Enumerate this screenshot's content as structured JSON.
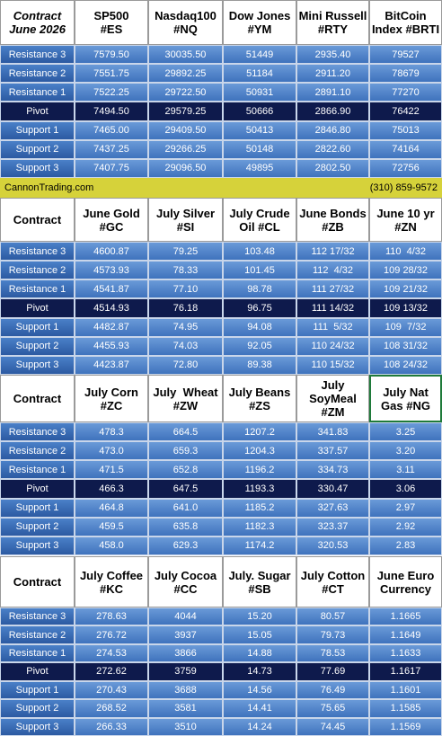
{
  "sections": [
    {
      "header": [
        [
          "Contract",
          "June 2026"
        ],
        [
          "SP500",
          "#ES"
        ],
        [
          "Nasdaq100",
          "#NQ"
        ],
        [
          "Dow Jones",
          "#YM"
        ],
        [
          "Mini Russell",
          "#RTY"
        ],
        [
          "BitCoin",
          "Index #BRTI"
        ]
      ],
      "rows": [
        [
          "Resistance 3",
          "7579.50",
          "30035.50",
          "51449",
          "2935.40",
          "79527"
        ],
        [
          "Resistance 2",
          "7551.75",
          "29892.25",
          "51184",
          "2911.20",
          "78679"
        ],
        [
          "Resistance 1",
          "7522.25",
          "29722.50",
          "50931",
          "2891.10",
          "77270"
        ],
        [
          "Pivot",
          "7494.50",
          "29579.25",
          "50666",
          "2866.90",
          "76422"
        ],
        [
          "Support 1",
          "7465.00",
          "29409.50",
          "50413",
          "2846.80",
          "75013"
        ],
        [
          "Support 2",
          "7437.25",
          "29266.25",
          "50148",
          "2822.60",
          "74164"
        ],
        [
          "Support 3",
          "7407.75",
          "29096.50",
          "49895",
          "2802.50",
          "72756"
        ]
      ]
    },
    {
      "header": [
        [
          "Contract"
        ],
        [
          "June Gold",
          "#GC"
        ],
        [
          "July Silver",
          "#SI"
        ],
        [
          "July Crude",
          "Oil #CL"
        ],
        [
          "June Bonds",
          "#ZB"
        ],
        [
          "June 10 yr",
          "#ZN"
        ]
      ],
      "rows": [
        [
          "Resistance 3",
          "4600.87",
          "79.25",
          "103.48",
          "112 17/32",
          "110  4/32"
        ],
        [
          "Resistance 2",
          "4573.93",
          "78.33",
          "101.45",
          "112  4/32",
          "109 28/32"
        ],
        [
          "Resistance 1",
          "4541.87",
          "77.10",
          "98.78",
          "111 27/32",
          "109 21/32"
        ],
        [
          "Pivot",
          "4514.93",
          "76.18",
          "96.75",
          "111 14/32",
          "109 13/32"
        ],
        [
          "Support 1",
          "4482.87",
          "74.95",
          "94.08",
          "111  5/32",
          "109  7/32"
        ],
        [
          "Support 2",
          "4455.93",
          "74.03",
          "92.05",
          "110 24/32",
          "108 31/32"
        ],
        [
          "Support 3",
          "4423.87",
          "72.80",
          "89.38",
          "110 15/32",
          "108 24/32"
        ]
      ]
    },
    {
      "header": [
        [
          "Contract"
        ],
        [
          "July Corn",
          "#ZC"
        ],
        [
          "July  Wheat",
          "#ZW"
        ],
        [
          "July Beans",
          "#ZS"
        ],
        [
          "July",
          "SoyMeal",
          "#ZM"
        ],
        [
          "July Nat",
          "Gas #NG"
        ]
      ],
      "rows": [
        [
          "Resistance 3",
          "478.3",
          "664.5",
          "1207.2",
          "341.83",
          "3.25"
        ],
        [
          "Resistance 2",
          "473.0",
          "659.3",
          "1204.3",
          "337.57",
          "3.20"
        ],
        [
          "Resistance 1",
          "471.5",
          "652.8",
          "1196.2",
          "334.73",
          "3.11"
        ],
        [
          "Pivot",
          "466.3",
          "647.5",
          "1193.3",
          "330.47",
          "3.06"
        ],
        [
          "Support 1",
          "464.8",
          "641.0",
          "1185.2",
          "327.63",
          "2.97"
        ],
        [
          "Support 2",
          "459.5",
          "635.8",
          "1182.3",
          "323.37",
          "2.92"
        ],
        [
          "Support 3",
          "458.0",
          "629.3",
          "1174.2",
          "320.53",
          "2.83"
        ]
      ]
    },
    {
      "header": [
        [
          "Contract"
        ],
        [
          "July Coffee",
          "#KC"
        ],
        [
          "July Cocoa",
          "#CC"
        ],
        [
          "July. Sugar",
          "#SB"
        ],
        [
          "July Cotton",
          "#CT"
        ],
        [
          "June Euro",
          "Currency"
        ]
      ],
      "rows": [
        [
          "Resistance 3",
          "278.63",
          "4044",
          "15.20",
          "80.57",
          "1.1665"
        ],
        [
          "Resistance 2",
          "276.72",
          "3937",
          "15.05",
          "79.73",
          "1.1649"
        ],
        [
          "Resistance 1",
          "274.53",
          "3866",
          "14.88",
          "78.53",
          "1.1633"
        ],
        [
          "Pivot",
          "272.62",
          "3759",
          "14.73",
          "77.69",
          "1.1617"
        ],
        [
          "Support 1",
          "270.43",
          "3688",
          "14.56",
          "76.49",
          "1.1601"
        ],
        [
          "Support 2",
          "268.52",
          "3581",
          "14.41",
          "75.65",
          "1.1585"
        ],
        [
          "Support 3",
          "266.33",
          "3510",
          "14.24",
          "74.45",
          "1.1569"
        ]
      ]
    }
  ],
  "footer": {
    "site": "CannonTrading.com",
    "phone": "(310) 859-9572"
  }
}
